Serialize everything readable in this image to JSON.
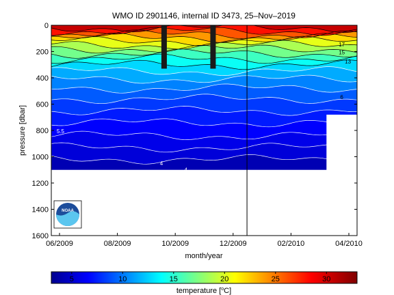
{
  "chart_data": {
    "type": "heatmap",
    "title": "WMO ID 2901146, internal ID 3473, 25–Nov–2019",
    "xlabel": "month/year",
    "ylabel": "pressure [dbar]",
    "colorbar_label": "temperature [",
    "colorbar_unit_sup": "o",
    "colorbar_unit": "C]",
    "ylim": [
      0,
      1600
    ],
    "y_reversed": true,
    "x_ticks": [
      "06/2009",
      "08/2009",
      "10/2009",
      "12/2009",
      "02/2010",
      "04/2010"
    ],
    "y_ticks": [
      "0",
      "200",
      "400",
      "600",
      "800",
      "1000",
      "1200",
      "1400",
      "1600"
    ],
    "colorbar_range": [
      3,
      33
    ],
    "colorbar_ticks": [
      "5",
      "10",
      "15",
      "20",
      "25",
      "30"
    ],
    "contour_labels": [
      "5.5",
      "4",
      "4",
      "6",
      "13",
      "15",
      "17",
      "5"
    ],
    "bottom_depth_dbar": 1100,
    "isotherm_depths_dbar": [
      20,
      45,
      70,
      95,
      120,
      150,
      180,
      215,
      255,
      300,
      350,
      410,
      480,
      560,
      650,
      740,
      840,
      930,
      1020
    ],
    "marker_x_fraction": 0.64,
    "colors": {
      "deep": "#00009a",
      "mid": "#1e6cff",
      "warm": "#ff9a00",
      "hot": "#b00000"
    }
  },
  "logo": {
    "text": "NOAA"
  }
}
